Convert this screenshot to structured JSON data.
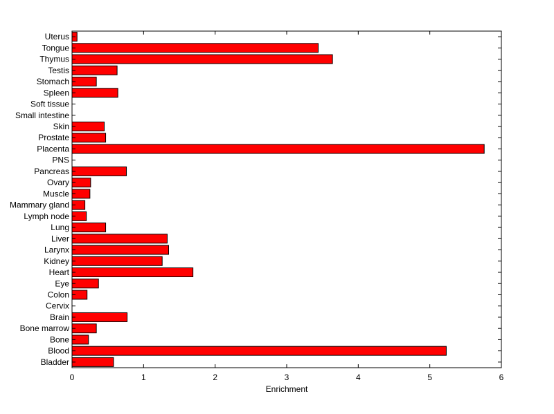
{
  "chart_data": {
    "type": "bar",
    "orientation": "horizontal",
    "xlabel": "Enrichment",
    "ylabel": "",
    "title": "",
    "xlim": [
      0,
      6
    ],
    "xticks": [
      "0",
      "1",
      "2",
      "3",
      "4",
      "5",
      "6"
    ],
    "bar_color": "#ff0000",
    "grid": false,
    "categories": [
      "Uterus",
      "Tongue",
      "Thymus",
      "Testis",
      "Stomach",
      "Spleen",
      "Soft tissue",
      "Small intestine",
      "Skin",
      "Prostate",
      "Placenta",
      "PNS",
      "Pancreas",
      "Ovary",
      "Muscle",
      "Mammary gland",
      "Lymph node",
      "Lung",
      "Liver",
      "Larynx",
      "Kidney",
      "Heart",
      "Eye",
      "Colon",
      "Cervix",
      "Brain",
      "Bone marrow",
      "Bone",
      "Blood",
      "Bladder"
    ],
    "values": [
      0.07,
      3.44,
      3.64,
      0.63,
      0.34,
      0.64,
      0,
      0,
      0.45,
      0.47,
      5.76,
      0,
      0.76,
      0.26,
      0.25,
      0.18,
      0.2,
      0.47,
      1.33,
      1.35,
      1.26,
      1.69,
      0.37,
      0.21,
      0,
      0.77,
      0.34,
      0.23,
      5.23,
      0.58
    ]
  }
}
